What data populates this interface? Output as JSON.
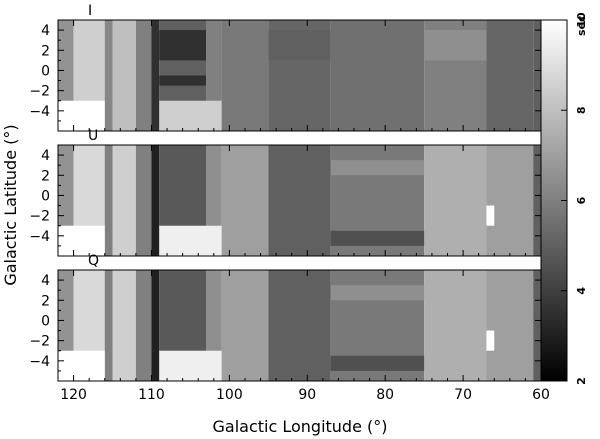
{
  "chart_data": {
    "type": "heatmap",
    "xlabel": "Galactic Longitude (°)",
    "ylabel": "Galactic Latitude (°)",
    "xlim": [
      122,
      60
    ],
    "ylim": [
      -6,
      5
    ],
    "x_ticks": [
      120,
      110,
      100,
      90,
      80,
      70,
      60
    ],
    "x_tick_labels": [
      "120",
      "110",
      "100",
      "90",
      "80",
      "70",
      "60"
    ],
    "y_ticks": [
      4,
      2,
      0,
      -2,
      -4
    ],
    "y_tick_labels": [
      "4",
      "2",
      "0",
      "−2",
      "−4"
    ],
    "colorbar": {
      "range": [
        2,
        10
      ],
      "unit": "sec",
      "ticks": [
        2,
        4,
        6,
        8,
        10
      ],
      "tick_labels": [
        "2",
        "4",
        "6",
        "8",
        "10"
      ],
      "colormap": "grayscale (black = low, white = high)"
    },
    "panels": [
      {
        "name": "I",
        "columns": [
          {
            "x": [
              122,
              120
            ],
            "y": [
              -6,
              5
            ],
            "value": 6.6
          },
          {
            "x": [
              120,
              116
            ],
            "y": [
              -6,
              5
            ],
            "value": 8.5
          },
          {
            "x": [
              116,
              115
            ],
            "y": [
              -6,
              5
            ],
            "value": 6.2
          },
          {
            "x": [
              115,
              112
            ],
            "y": [
              -6,
              5
            ],
            "value": 8.0
          },
          {
            "x": [
              112,
              110
            ],
            "y": [
              -6,
              5
            ],
            "value": 6.0
          },
          {
            "x": [
              110,
              109
            ],
            "y": [
              -6,
              5
            ],
            "value": 3.5
          },
          {
            "x": [
              109,
              103
            ],
            "y": [
              -6,
              5
            ],
            "value": 5.0
          },
          {
            "x": [
              103,
              101
            ],
            "y": [
              -6,
              5
            ],
            "value": 6.0
          },
          {
            "x": [
              101,
              95
            ],
            "y": [
              -6,
              5
            ],
            "value": 5.8
          },
          {
            "x": [
              95,
              87
            ],
            "y": [
              -6,
              5
            ],
            "value": 5.2
          },
          {
            "x": [
              87,
              75
            ],
            "y": [
              -6,
              5
            ],
            "value": 5.5
          },
          {
            "x": [
              75,
              67
            ],
            "y": [
              -6,
              5
            ],
            "value": 6.0
          },
          {
            "x": [
              67,
              61
            ],
            "y": [
              -6,
              5
            ],
            "value": 5.2
          },
          {
            "x": [
              61,
              60
            ],
            "y": [
              -6,
              5
            ],
            "value": 5.0
          }
        ],
        "cells": [
          {
            "x": [
              122,
              116
            ],
            "y": [
              -6,
              -3
            ],
            "value": 10.0
          },
          {
            "x": [
              109,
              101
            ],
            "y": [
              -6,
              -3
            ],
            "value": 8.5
          },
          {
            "x": [
              109,
              103
            ],
            "y": [
              1,
              4
            ],
            "value": 3.5
          },
          {
            "x": [
              109,
              103
            ],
            "y": [
              -1.5,
              -0.5
            ],
            "value": 3.5
          },
          {
            "x": [
              95,
              87
            ],
            "y": [
              1,
              4
            ],
            "value": 5.0
          },
          {
            "x": [
              75,
              67
            ],
            "y": [
              1,
              4
            ],
            "value": 6.5
          }
        ]
      },
      {
        "name": "U",
        "columns": [
          {
            "x": [
              122,
              120
            ],
            "y": [
              -6,
              5
            ],
            "value": 6.6
          },
          {
            "x": [
              120,
              116
            ],
            "y": [
              -6,
              5
            ],
            "value": 8.8
          },
          {
            "x": [
              116,
              115
            ],
            "y": [
              -6,
              5
            ],
            "value": 6.0
          },
          {
            "x": [
              115,
              112
            ],
            "y": [
              -6,
              5
            ],
            "value": 8.5
          },
          {
            "x": [
              112,
              110
            ],
            "y": [
              -6,
              5
            ],
            "value": 6.0
          },
          {
            "x": [
              110,
              109
            ],
            "y": [
              -6,
              5
            ],
            "value": 3.0
          },
          {
            "x": [
              109,
              103
            ],
            "y": [
              -6,
              5
            ],
            "value": 4.8
          },
          {
            "x": [
              103,
              101
            ],
            "y": [
              -6,
              5
            ],
            "value": 6.5
          },
          {
            "x": [
              101,
              95
            ],
            "y": [
              -6,
              5
            ],
            "value": 7.0
          },
          {
            "x": [
              95,
              87
            ],
            "y": [
              -6,
              5
            ],
            "value": 5.0
          },
          {
            "x": [
              87,
              75
            ],
            "y": [
              -6,
              5
            ],
            "value": 5.8
          },
          {
            "x": [
              75,
              67
            ],
            "y": [
              -6,
              5
            ],
            "value": 7.5
          },
          {
            "x": [
              67,
              61
            ],
            "y": [
              -6,
              5
            ],
            "value": 7.0
          },
          {
            "x": [
              61,
              60
            ],
            "y": [
              -6,
              5
            ],
            "value": 5.0
          }
        ],
        "cells": [
          {
            "x": [
              122,
              116
            ],
            "y": [
              -6,
              -3
            ],
            "value": 10.0
          },
          {
            "x": [
              109,
              101
            ],
            "y": [
              -6,
              -3
            ],
            "value": 9.5
          },
          {
            "x": [
              67,
              66
            ],
            "y": [
              -3,
              -1
            ],
            "value": 10.0
          },
          {
            "x": [
              87,
              75
            ],
            "y": [
              2,
              3.5
            ],
            "value": 6.5
          },
          {
            "x": [
              87,
              75
            ],
            "y": [
              -5,
              -3.5
            ],
            "value": 4.5
          }
        ]
      },
      {
        "name": "Q",
        "columns": [
          {
            "x": [
              122,
              120
            ],
            "y": [
              -6,
              5
            ],
            "value": 6.6
          },
          {
            "x": [
              120,
              116
            ],
            "y": [
              -6,
              5
            ],
            "value": 8.8
          },
          {
            "x": [
              116,
              115
            ],
            "y": [
              -6,
              5
            ],
            "value": 6.0
          },
          {
            "x": [
              115,
              112
            ],
            "y": [
              -6,
              5
            ],
            "value": 8.5
          },
          {
            "x": [
              112,
              110
            ],
            "y": [
              -6,
              5
            ],
            "value": 6.0
          },
          {
            "x": [
              110,
              109
            ],
            "y": [
              -6,
              5
            ],
            "value": 3.0
          },
          {
            "x": [
              109,
              103
            ],
            "y": [
              -6,
              5
            ],
            "value": 4.8
          },
          {
            "x": [
              103,
              101
            ],
            "y": [
              -6,
              5
            ],
            "value": 6.5
          },
          {
            "x": [
              101,
              95
            ],
            "y": [
              -6,
              5
            ],
            "value": 7.0
          },
          {
            "x": [
              95,
              87
            ],
            "y": [
              -6,
              5
            ],
            "value": 5.0
          },
          {
            "x": [
              87,
              75
            ],
            "y": [
              -6,
              5
            ],
            "value": 5.8
          },
          {
            "x": [
              75,
              67
            ],
            "y": [
              -6,
              5
            ],
            "value": 7.5
          },
          {
            "x": [
              67,
              61
            ],
            "y": [
              -6,
              5
            ],
            "value": 7.0
          },
          {
            "x": [
              61,
              60
            ],
            "y": [
              -6,
              5
            ],
            "value": 5.0
          }
        ],
        "cells": [
          {
            "x": [
              122,
              116
            ],
            "y": [
              -6,
              -3
            ],
            "value": 10.0
          },
          {
            "x": [
              109,
              101
            ],
            "y": [
              -6,
              -3
            ],
            "value": 9.5
          },
          {
            "x": [
              67,
              66
            ],
            "y": [
              -3,
              -1
            ],
            "value": 10.0
          },
          {
            "x": [
              87,
              75
            ],
            "y": [
              2,
              3.5
            ],
            "value": 6.5
          },
          {
            "x": [
              87,
              75
            ],
            "y": [
              -5,
              -3.5
            ],
            "value": 4.5
          }
        ]
      }
    ]
  }
}
